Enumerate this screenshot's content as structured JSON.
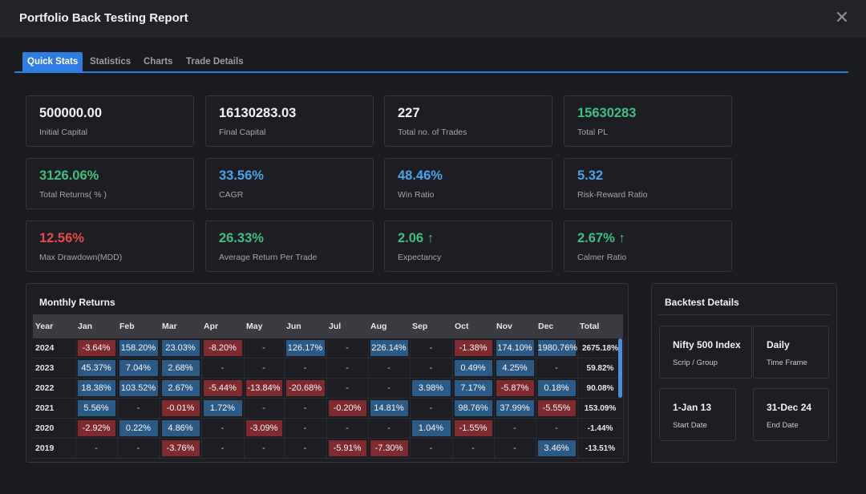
{
  "modal": {
    "title": "Portfolio Back Testing Report",
    "close_glyph": "✕"
  },
  "tabs": [
    {
      "label": "Quick Stats"
    },
    {
      "label": "Statistics"
    },
    {
      "label": "Charts"
    },
    {
      "label": "Trade Details"
    }
  ],
  "stats": [
    {
      "value": "500000.00",
      "label": "Initial Capital",
      "tone": "white"
    },
    {
      "value": "16130283.03",
      "label": "Final Capital",
      "tone": "white"
    },
    {
      "value": "227",
      "label": "Total no. of Trades",
      "tone": "white"
    },
    {
      "value": "15630283",
      "label": "Total PL",
      "tone": "green"
    },
    {
      "value": "3126.06%",
      "label": "Total Returns( % )",
      "tone": "green"
    },
    {
      "value": "33.56%",
      "label": "CAGR",
      "tone": "blue"
    },
    {
      "value": "48.46%",
      "label": "Win Ratio",
      "tone": "blue"
    },
    {
      "value": "5.32",
      "label": "Risk-Reward Ratio",
      "tone": "blue"
    },
    {
      "value": "12.56%",
      "label": "Max Drawdown(MDD)",
      "tone": "red"
    },
    {
      "value": "26.33%",
      "label": "Average Return Per Trade",
      "tone": "green"
    },
    {
      "value": "2.06 ↑",
      "label": "Expectancy",
      "tone": "green"
    },
    {
      "value": "2.67% ↑",
      "label": "Calmer Ratio",
      "tone": "green"
    }
  ],
  "monthly_returns": {
    "title": "Monthly Returns",
    "headers": [
      "Year",
      "Jan",
      "Feb",
      "Mar",
      "Apr",
      "May",
      "Jun",
      "Jul",
      "Aug",
      "Sep",
      "Oct",
      "Nov",
      "Dec",
      "Total"
    ],
    "rows": [
      {
        "year": "2024",
        "cells": [
          "-3.64%",
          "158.20%",
          "23.03%",
          "-8.20%",
          "-",
          "126.17%",
          "-",
          "226.14%",
          "-",
          "-1.38%",
          "174.10%",
          "1980.76%"
        ],
        "total": "2675.18%"
      },
      {
        "year": "2023",
        "cells": [
          "45.37%",
          "7.04%",
          "2.68%",
          "-",
          "-",
          "-",
          "-",
          "-",
          "-",
          "0.49%",
          "4.25%",
          "-"
        ],
        "total": "59.82%"
      },
      {
        "year": "2022",
        "cells": [
          "18.38%",
          "103.52%",
          "2.67%",
          "-5.44%",
          "-13.84%",
          "-20.68%",
          "-",
          "-",
          "3.98%",
          "7.17%",
          "-5.87%",
          "0.18%"
        ],
        "total": "90.08%"
      },
      {
        "year": "2021",
        "cells": [
          "5.56%",
          "-",
          "-0.01%",
          "1.72%",
          "-",
          "-",
          "-0.20%",
          "14.81%",
          "-",
          "98.76%",
          "37.99%",
          "-5.55%"
        ],
        "total": "153.09%"
      },
      {
        "year": "2020",
        "cells": [
          "-2.92%",
          "0.22%",
          "4.86%",
          "-",
          "-3.09%",
          "-",
          "-",
          "-",
          "1.04%",
          "-1.55%",
          "-",
          "-"
        ],
        "total": "-1.44%"
      },
      {
        "year": "2019",
        "cells": [
          "-",
          "-",
          "-3.76%",
          "-",
          "-",
          "-",
          "-5.91%",
          "-7.30%",
          "-",
          "-",
          "-",
          "3.46%"
        ],
        "total": "-13.51%"
      }
    ]
  },
  "backtest_details": {
    "title": "Backtest Details",
    "items": [
      {
        "value": "Nifty 500 Index",
        "label": "Scrip / Group"
      },
      {
        "value": "Daily",
        "label": "Time Frame"
      },
      {
        "value": "1-Jan 13",
        "label": "Start Date"
      },
      {
        "value": "31-Dec 24",
        "label": "End Date"
      }
    ]
  },
  "colors": {
    "accent": "#2f7de1",
    "positive": "#2c5a86",
    "negative": "#7e2a2f",
    "green": "#3fbf7f",
    "blue": "#4aa3e8",
    "red": "#e84a4a"
  }
}
